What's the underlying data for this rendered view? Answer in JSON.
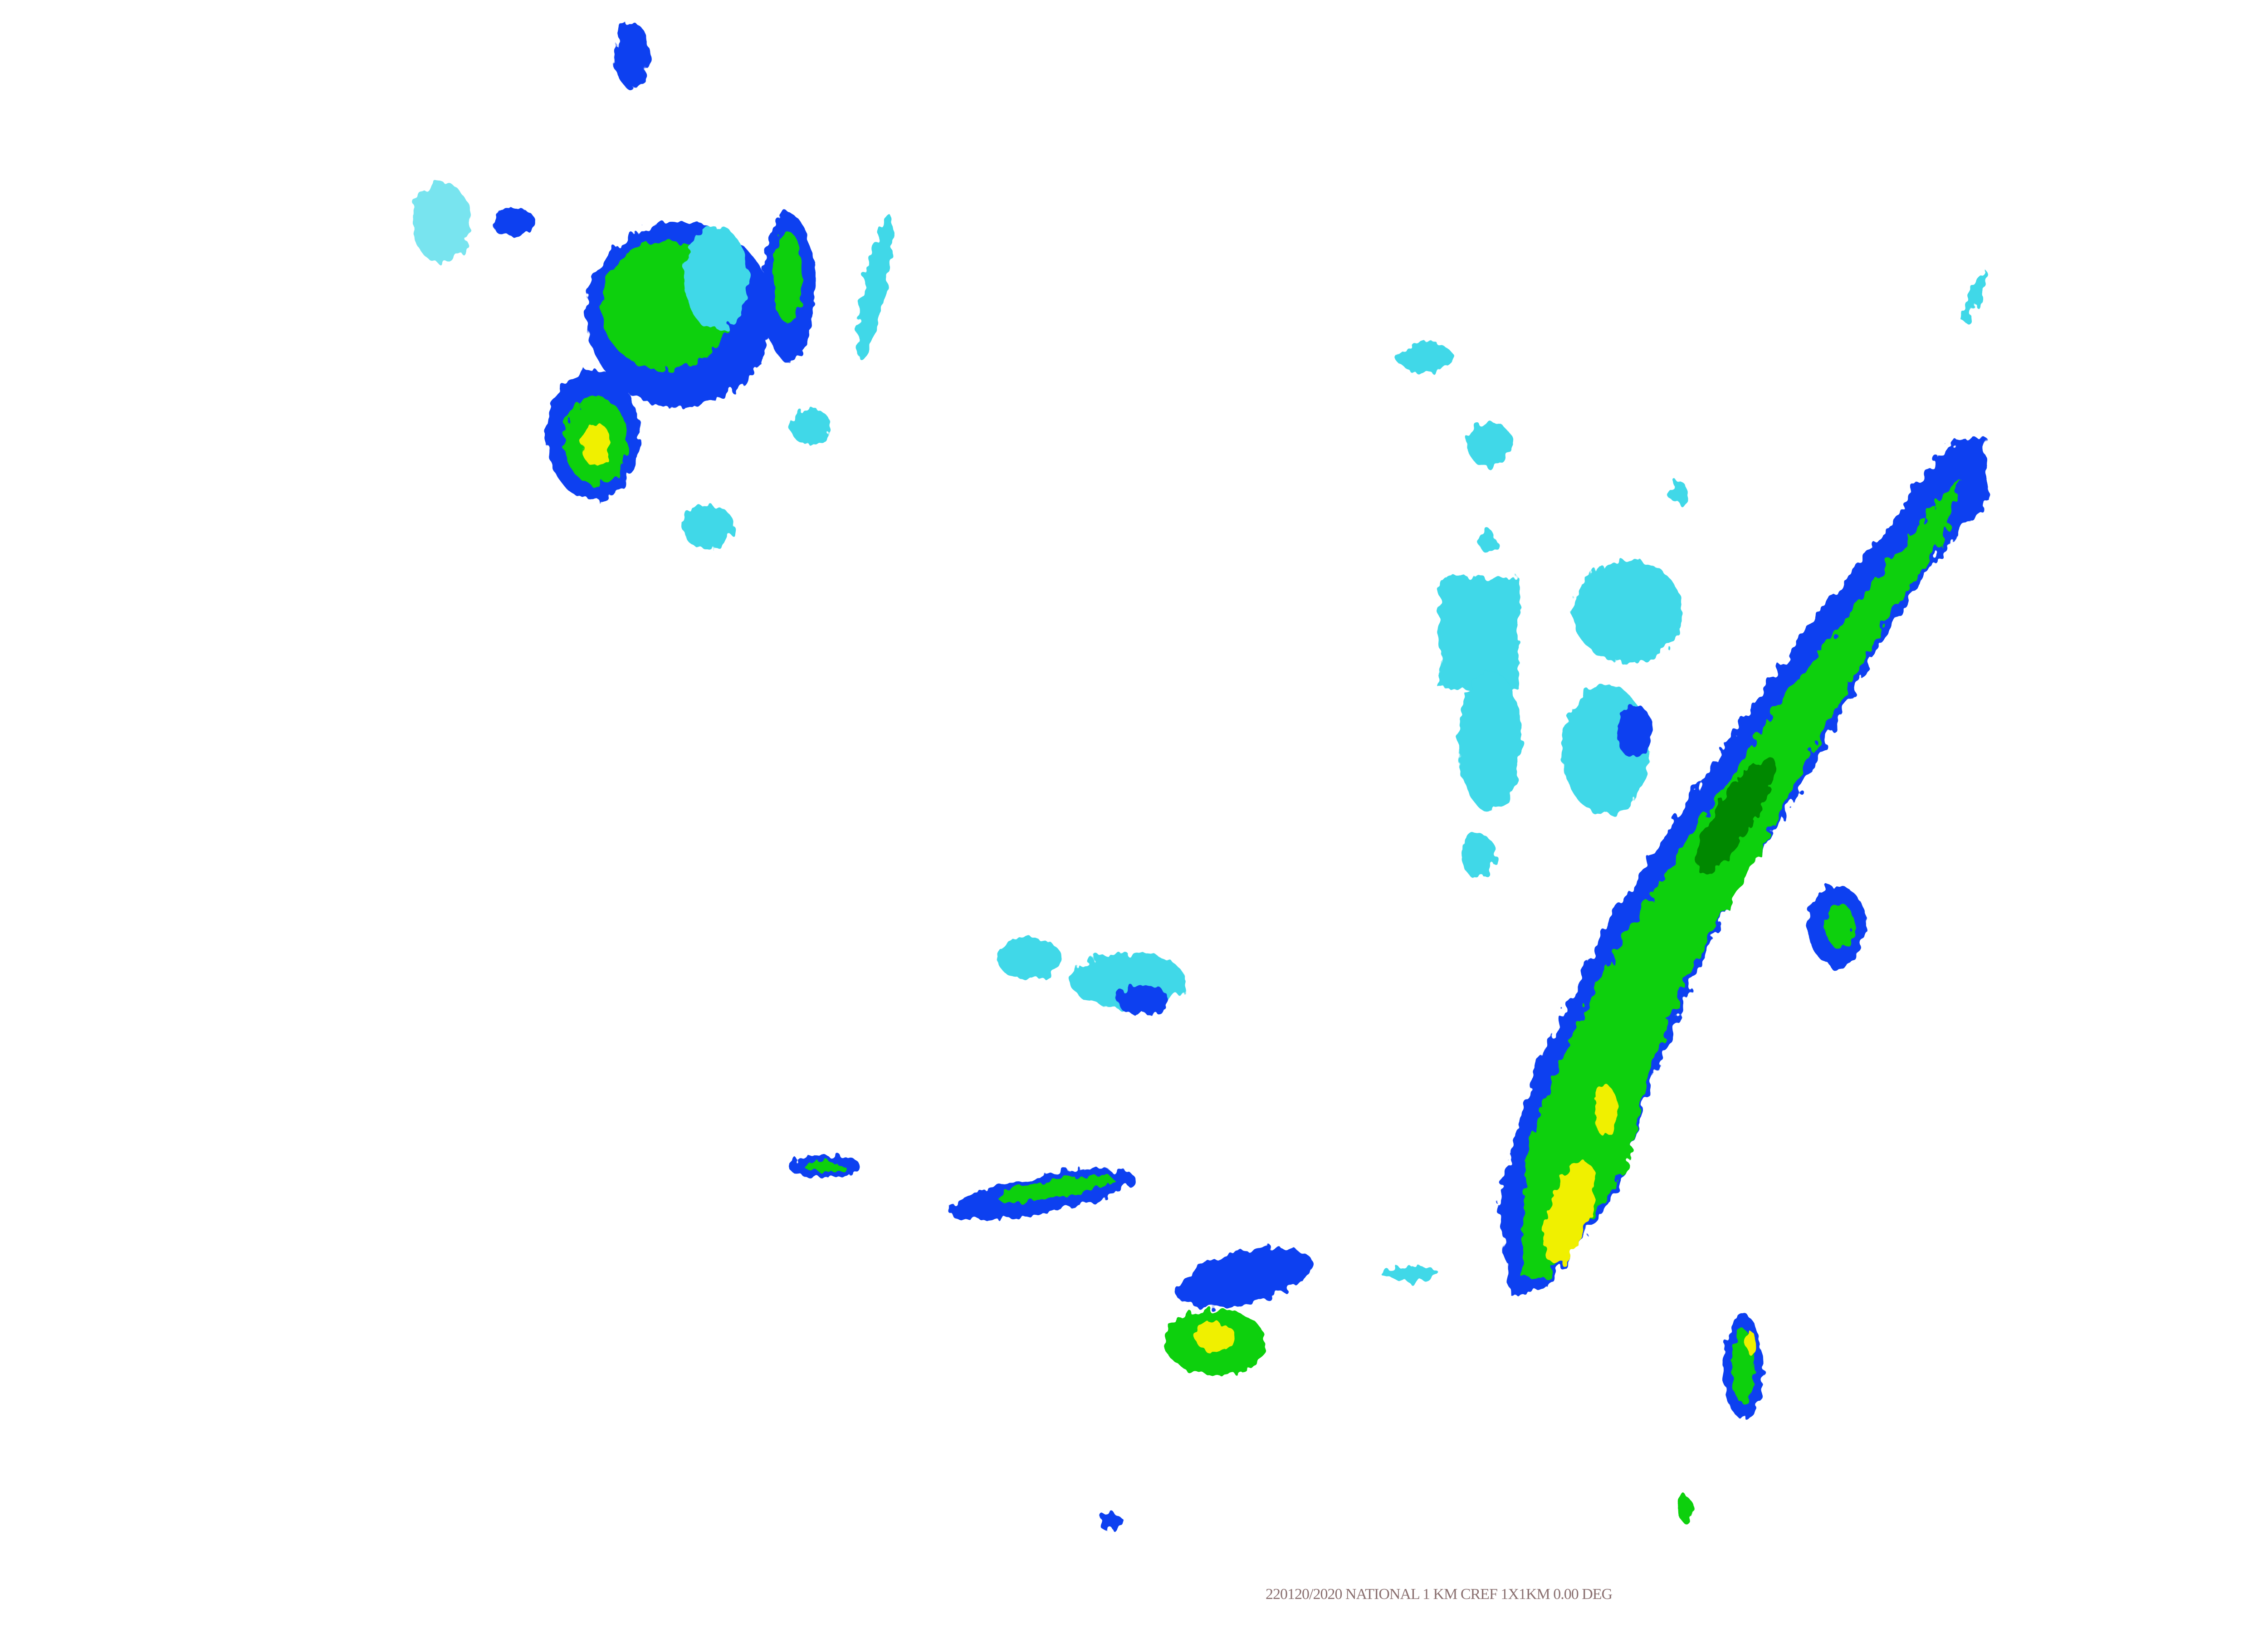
{
  "map": {
    "product": "composite reflectivity radar mosaic",
    "caption": "220120/2020 NATIONAL  1 KM  CREF  1X1KM 0.00 DEG",
    "colors": {
      "light_cyan": "#3fd8e8",
      "blue": "#1040f0",
      "dark_blue": "#0010c0",
      "green": "#10d010",
      "dark_green": "#008800",
      "yellow": "#f0f000",
      "background": "#ffffff"
    }
  }
}
